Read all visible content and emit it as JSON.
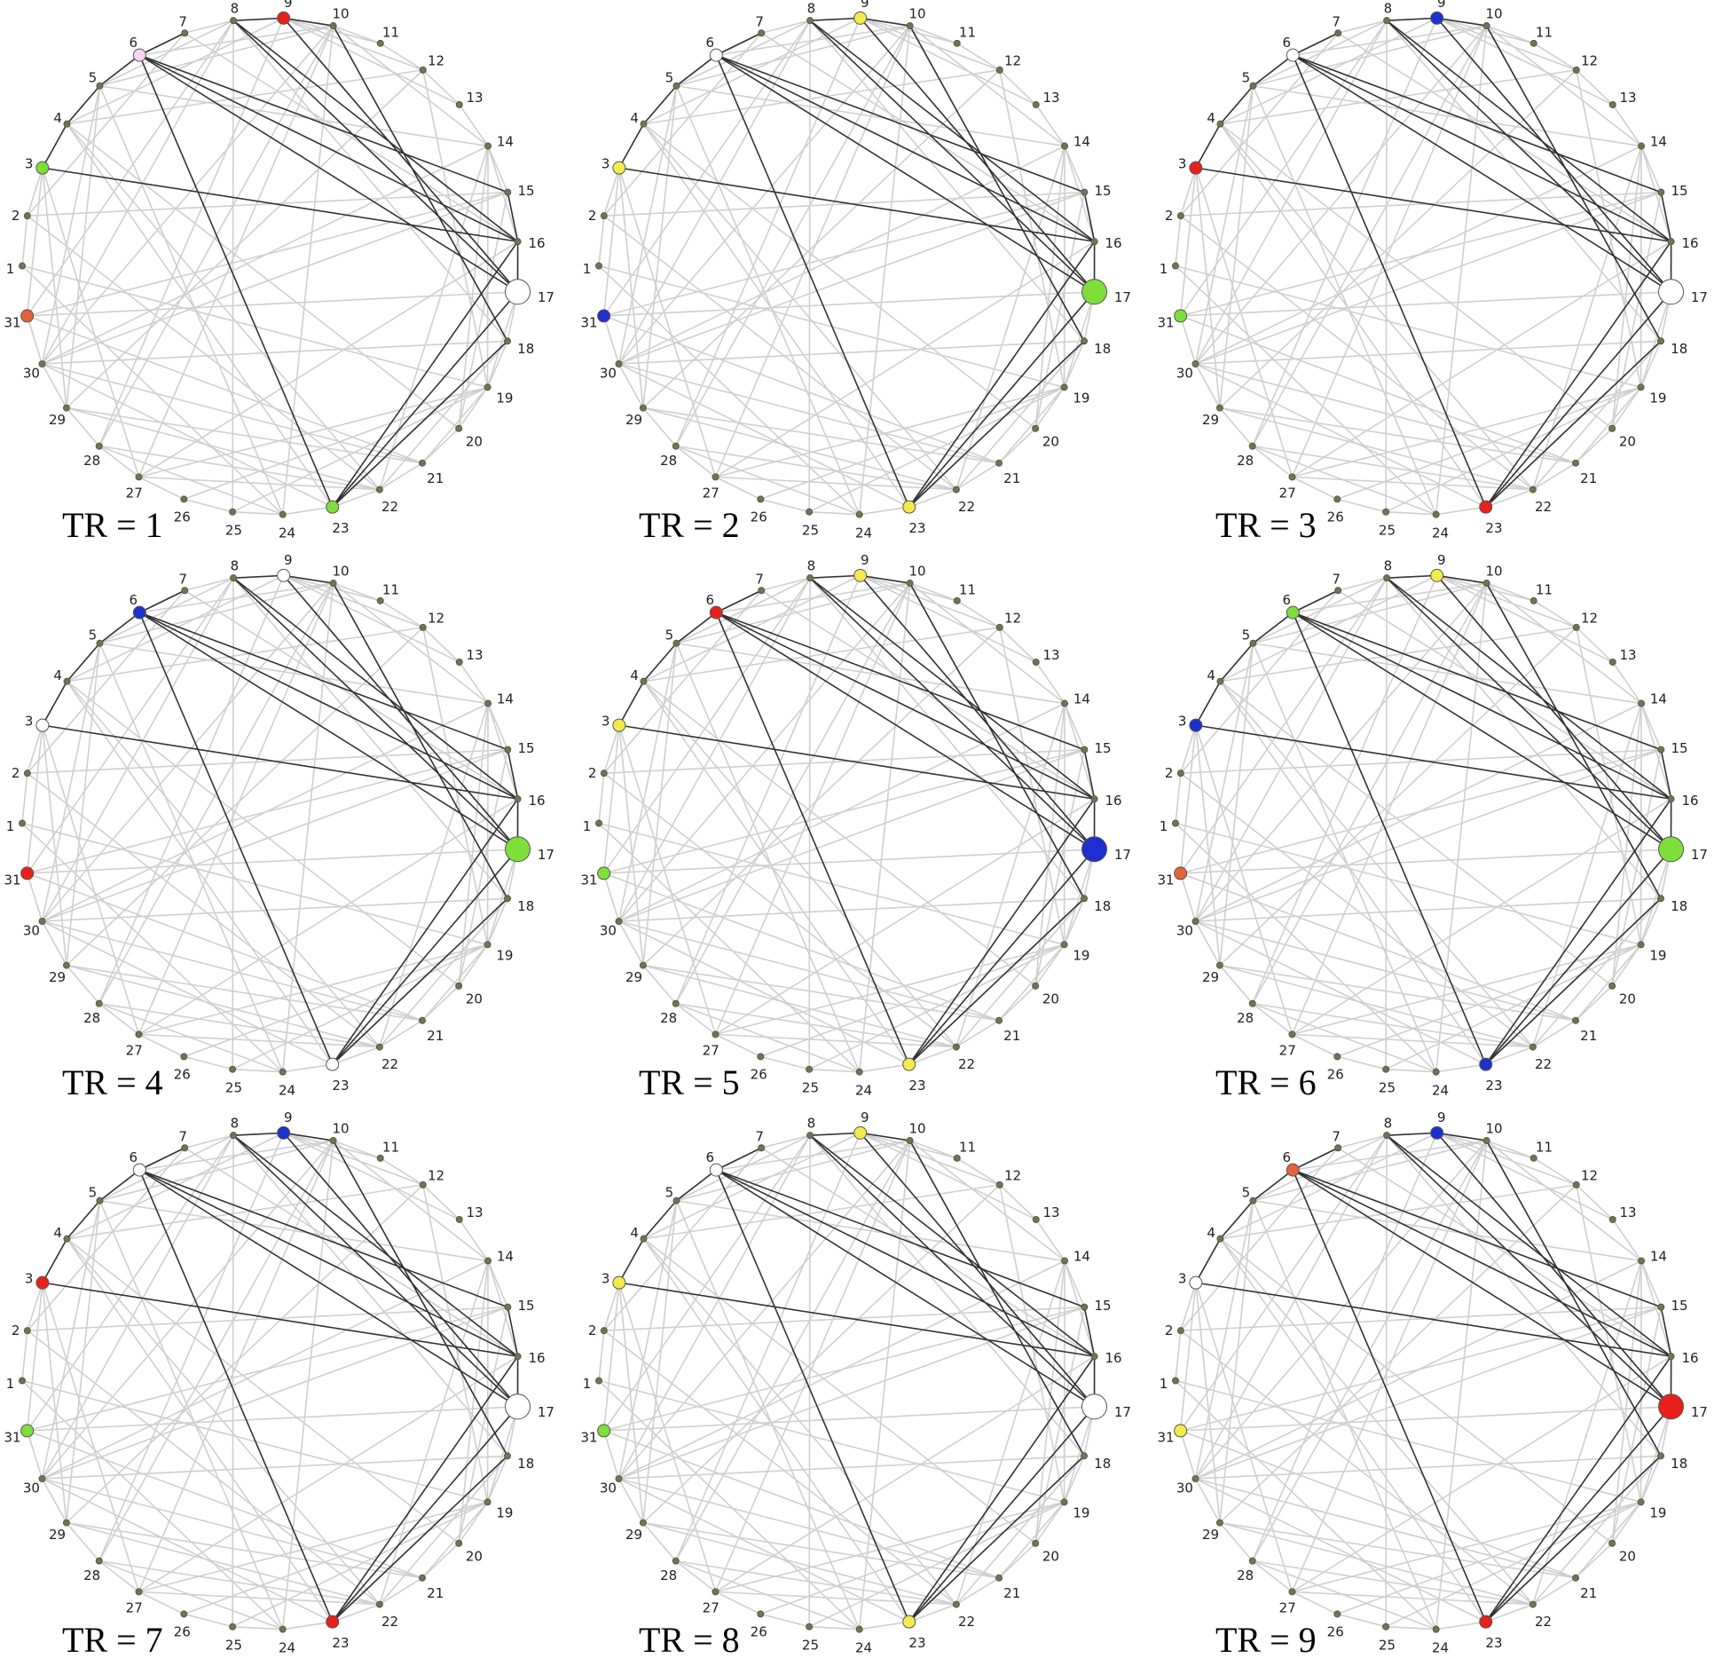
{
  "nodes": [
    "1",
    "2",
    "3",
    "4",
    "5",
    "6",
    "7",
    "8",
    "9",
    "10",
    "11",
    "12",
    "13",
    "14",
    "15",
    "16",
    "17",
    "18",
    "19",
    "20",
    "21",
    "22",
    "23",
    "24",
    "25",
    "26",
    "27",
    "28",
    "29",
    "30",
    "31"
  ],
  "default_node_color": "#6b7a4a",
  "panels": [
    {
      "label": "TR = 1",
      "colors": {
        "6": "#f6d8f2",
        "9": "#e8201c",
        "17": "#ffffff",
        "23": "#7ede3a",
        "3": "#7ede3a",
        "31": "#e2643a"
      }
    },
    {
      "label": "TR = 2",
      "colors": {
        "6": "#ffffff",
        "9": "#f4ea4c",
        "17": "#7ede3a",
        "23": "#f4ea4c",
        "3": "#f4ea4c",
        "31": "#1e2fd0"
      }
    },
    {
      "label": "TR = 3",
      "colors": {
        "6": "#ffffff",
        "9": "#1e2fd0",
        "17": "#ffffff",
        "23": "#e8201c",
        "3": "#e8201c",
        "31": "#7ede3a"
      }
    },
    {
      "label": "TR = 4",
      "colors": {
        "6": "#1e2fd0",
        "9": "#ffffff",
        "17": "#7ede3a",
        "23": "#ffffff",
        "3": "#ffffff",
        "31": "#e8201c"
      }
    },
    {
      "label": "TR = 5",
      "colors": {
        "6": "#e8201c",
        "9": "#f4ea4c",
        "17": "#1e2fd0",
        "23": "#f4ea4c",
        "3": "#f4ea4c",
        "31": "#7ede3a"
      }
    },
    {
      "label": "TR = 6",
      "colors": {
        "6": "#7ede3a",
        "9": "#f4ea4c",
        "17": "#7ede3a",
        "23": "#1e2fd0",
        "3": "#1e2fd0",
        "31": "#e2643a"
      }
    },
    {
      "label": "TR = 7",
      "colors": {
        "6": "#ffffff",
        "9": "#1e2fd0",
        "17": "#ffffff",
        "23": "#e8201c",
        "3": "#e8201c",
        "31": "#7ede3a"
      }
    },
    {
      "label": "TR = 8",
      "colors": {
        "6": "#ffffff",
        "9": "#f4ea4c",
        "17": "#ffffff",
        "23": "#f4ea4c",
        "3": "#f4ea4c",
        "31": "#7ede3a"
      }
    },
    {
      "label": "TR = 9",
      "colors": {
        "6": "#e2643a",
        "9": "#1e2fd0",
        "17": "#e8201c",
        "23": "#e8201c",
        "3": "#ffffff",
        "31": "#f4ea4c"
      }
    }
  ]
}
